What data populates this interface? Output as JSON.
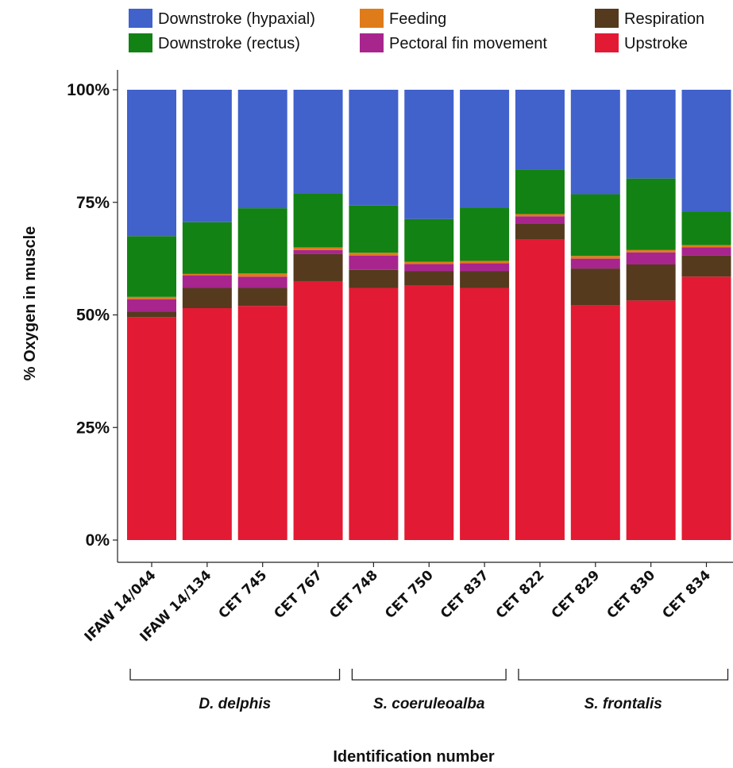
{
  "chart_data": {
    "type": "bar",
    "stacked": true,
    "percent": true,
    "xlabel": "Identification number",
    "ylabel": "% Oxygen in muscle",
    "ylim": [
      0,
      100
    ],
    "yticks": [
      "0%",
      "25%",
      "50%",
      "75%",
      "100%"
    ],
    "legend_position": "top",
    "categories": [
      "IFAW 14/044",
      "IFAW 14/134",
      "CET 745",
      "CET 767",
      "CET 748",
      "CET 750",
      "CET 837",
      "CET 822",
      "CET 829",
      "CET 830",
      "CET 834"
    ],
    "series": [
      {
        "name": "Upstroke",
        "color": "#E31A33",
        "values": [
          49.5,
          51.5,
          52.0,
          57.5,
          56.0,
          56.5,
          56.0,
          66.7,
          52.2,
          53.2,
          58.5
        ]
      },
      {
        "name": "Respiration",
        "color": "#553A1E",
        "values": [
          1.2,
          4.5,
          4.0,
          6.0,
          4.0,
          3.2,
          3.7,
          3.6,
          8.1,
          8.0,
          4.7
        ]
      },
      {
        "name": "Pectoral fin movement",
        "color": "#A8258E",
        "values": [
          2.8,
          2.8,
          2.5,
          0.9,
          3.2,
          1.6,
          1.8,
          1.6,
          2.2,
          2.7,
          1.8
        ]
      },
      {
        "name": "Feeding",
        "color": "#E07B1A",
        "values": [
          0.5,
          0.3,
          0.7,
          0.6,
          0.6,
          0.5,
          0.5,
          0.5,
          0.6,
          0.5,
          0.5
        ]
      },
      {
        "name": "Downstroke (rectus)",
        "color": "#128214",
        "values": [
          13.5,
          11.5,
          14.5,
          12.0,
          10.5,
          9.5,
          11.8,
          9.9,
          13.7,
          15.9,
          7.5
        ]
      },
      {
        "name": "Downstroke (hypaxial)",
        "color": "#4161CB",
        "values": [
          32.5,
          29.4,
          26.3,
          23.0,
          25.7,
          28.7,
          26.2,
          17.7,
          23.2,
          19.7,
          27.0
        ]
      }
    ],
    "groups": [
      {
        "label": "D. delphis",
        "members": [
          "IFAW 14/044",
          "IFAW 14/134",
          "CET 745",
          "CET 767"
        ]
      },
      {
        "label": "S. coeruleoalba",
        "members": [
          "CET 748",
          "CET 750",
          "CET 837"
        ]
      },
      {
        "label": "S. frontalis",
        "members": [
          "CET 822",
          "CET 829",
          "CET 830",
          "CET 834"
        ]
      }
    ],
    "legend": [
      {
        "label": "Downstroke (hypaxial)",
        "color": "#4161CB"
      },
      {
        "label": "Feeding",
        "color": "#E07B1A"
      },
      {
        "label": "Respiration",
        "color": "#553A1E"
      },
      {
        "label": "Downstroke (rectus)",
        "color": "#128214"
      },
      {
        "label": "Pectoral fin movement",
        "color": "#A8258E"
      },
      {
        "label": "Upstroke",
        "color": "#E31A33"
      }
    ]
  }
}
